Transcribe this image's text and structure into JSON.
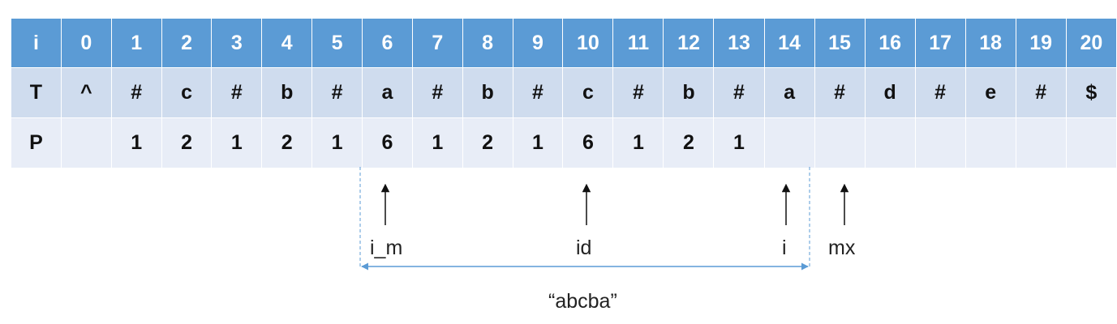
{
  "table": {
    "row_labels": [
      "i",
      "T",
      "P"
    ],
    "indices": [
      "0",
      "1",
      "2",
      "3",
      "4",
      "5",
      "6",
      "7",
      "8",
      "9",
      "10",
      "11",
      "12",
      "13",
      "14",
      "15",
      "16",
      "17",
      "18",
      "19",
      "20"
    ],
    "T": [
      "^",
      "#",
      "c",
      "#",
      "b",
      "#",
      "a",
      "#",
      "b",
      "#",
      "c",
      "#",
      "b",
      "#",
      "a",
      "#",
      "d",
      "#",
      "e",
      "#",
      "$"
    ],
    "P": [
      "",
      "1",
      "2",
      "1",
      "2",
      "1",
      "6",
      "1",
      "2",
      "1",
      "6",
      "1",
      "2",
      "1",
      "",
      "",
      "",
      "",
      "",
      "",
      ""
    ]
  },
  "markers": {
    "i_m": "i_m",
    "id": "id",
    "i": "i",
    "mx": "mx"
  },
  "span_label": "“abcba”",
  "colors": {
    "header_blue": "#5b9bd5",
    "row_t": "#cfdcee",
    "row_p": "#e8edf7",
    "span_line": "#5b9bd5"
  }
}
